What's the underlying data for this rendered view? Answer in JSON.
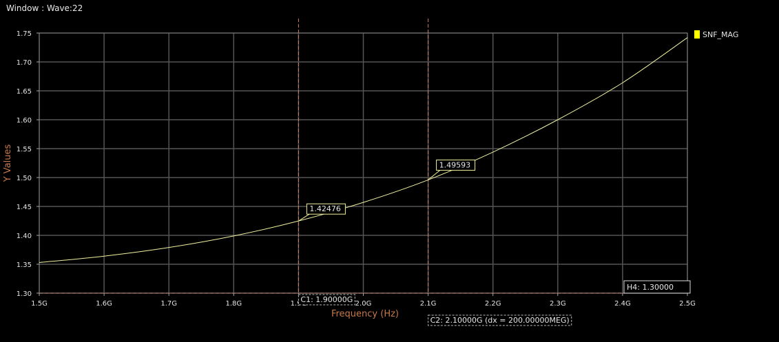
{
  "window": {
    "title": "Window : Wave:22"
  },
  "colors": {
    "background": "#000000",
    "grid": "#555555",
    "curve": "#f2f2a0",
    "legend_swatch": "#ffff00",
    "axis_label": "#c87a4a",
    "cursor": "#c8806a"
  },
  "chart_data": {
    "type": "line",
    "xlabel": "Frequency (Hz)",
    "ylabel": "Y Values",
    "xlim": [
      1.5,
      2.5
    ],
    "ylim": [
      1.3,
      1.75
    ],
    "x_tick_labels": [
      "1.5G",
      "1.6G",
      "1.7G",
      "1.8G",
      "1.9G",
      "2.0G",
      "2.1G",
      "2.2G",
      "2.3G",
      "2.4G",
      "2.5G"
    ],
    "y_tick_labels": [
      "1.30",
      "1.35",
      "1.40",
      "1.45",
      "1.50",
      "1.55",
      "1.60",
      "1.65",
      "1.70",
      "1.75"
    ],
    "grid": true,
    "legend_position": "top-right",
    "series": [
      {
        "name": "SNF_MAG",
        "x": [
          1.5,
          1.6,
          1.7,
          1.8,
          1.9,
          2.0,
          2.1,
          2.2,
          2.3,
          2.4,
          2.5
        ],
        "y": [
          1.353,
          1.364,
          1.379,
          1.399,
          1.4248,
          1.457,
          1.4959,
          1.544,
          1.6,
          1.664,
          1.742
        ]
      }
    ],
    "markers": [
      {
        "x": 1.9,
        "y": 1.42476,
        "label": "1.42476"
      },
      {
        "x": 2.1,
        "y": 1.49593,
        "label": "1.49593"
      }
    ],
    "cursors": {
      "vertical": [
        {
          "x": 1.9,
          "label": "C1: 1.90000G"
        },
        {
          "x": 2.1,
          "label": "C2: 2.10000G (dx = 200.00000MEG)"
        }
      ],
      "horizontal": [
        {
          "y": 1.3,
          "label": "H4: 1.30000"
        }
      ]
    }
  }
}
